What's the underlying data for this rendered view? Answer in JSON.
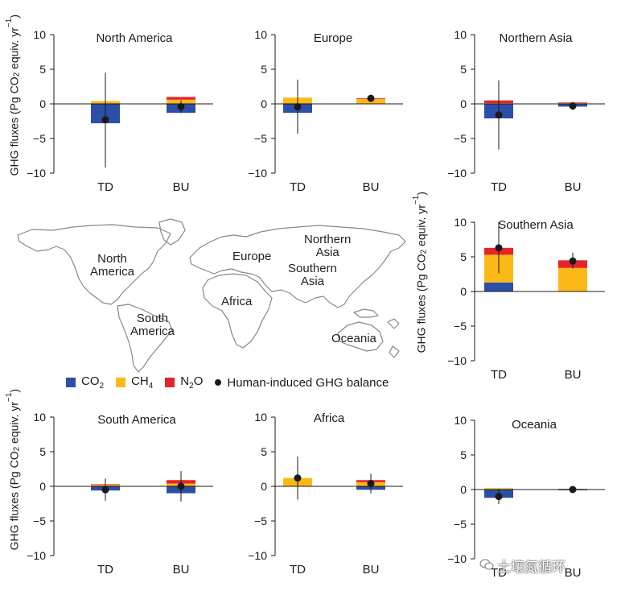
{
  "y_axis_title": "GHG fluxes (Pg CO",
  "y_axis_title_sub": "2",
  "y_axis_title_tail": " equiv. yr",
  "y_axis_title_sup": "−1",
  "y_axis_title_close": ")",
  "colors": {
    "co2": "#2b4fa6",
    "ch4": "#fbb918",
    "n2o": "#e5242a",
    "balance": "#1a1a1a",
    "map_outline": "#888888"
  },
  "legend": {
    "co2": "CO",
    "co2_sub": "2",
    "ch4": "CH",
    "ch4_sub": "4",
    "n2o": "N",
    "n2o_sub": "2",
    "n2o_tail": "O",
    "balance": "Human-induced GHG balance"
  },
  "map_labels": {
    "north_america": [
      "North",
      "America"
    ],
    "south_america": [
      "South",
      "America"
    ],
    "europe": "Europe",
    "africa": "Africa",
    "northern_asia": [
      "Northern",
      "Asia"
    ],
    "southern_asia": [
      "Southern",
      "Asia"
    ],
    "oceania": "Oceania"
  },
  "watermark": "土壤氮循环",
  "chart_data": [
    {
      "type": "bar",
      "title": "North America",
      "categories": [
        "TD",
        "BU"
      ],
      "ylim": [
        -10,
        10
      ],
      "yticks": [
        "10",
        "5",
        "0",
        "−5",
        "−10"
      ],
      "series": [
        {
          "name": "CO2",
          "values": [
            -2.8,
            -1.3
          ]
        },
        {
          "name": "CH4",
          "values": [
            0.4,
            0.6
          ]
        },
        {
          "name": "N2O",
          "values": [
            0.0,
            0.4
          ]
        }
      ],
      "balance": [
        -2.3,
        -0.4
      ],
      "error": [
        [
          -9.2,
          4.5
        ],
        [
          -1.3,
          0.5
        ]
      ]
    },
    {
      "type": "bar",
      "title": "Europe",
      "categories": [
        "TD",
        "BU"
      ],
      "ylim": [
        -10,
        10
      ],
      "yticks": [
        "10",
        "5",
        "0",
        "−5",
        "−10"
      ],
      "series": [
        {
          "name": "CO2",
          "values": [
            -1.3,
            0.0
          ]
        },
        {
          "name": "CH4",
          "values": [
            0.9,
            0.7
          ]
        },
        {
          "name": "N2O",
          "values": [
            0.0,
            0.1
          ]
        }
      ],
      "balance": [
        -0.4,
        0.8
      ],
      "error": [
        [
          -4.3,
          3.5
        ],
        [
          0.3,
          1.3
        ]
      ]
    },
    {
      "type": "bar",
      "title": "Northern Asia",
      "categories": [
        "TD",
        "BU"
      ],
      "ylim": [
        -10,
        10
      ],
      "yticks": [
        "10",
        "5",
        "0",
        "−5",
        "−10"
      ],
      "series": [
        {
          "name": "CO2",
          "values": [
            -2.1,
            -0.4
          ]
        },
        {
          "name": "CH4",
          "values": [
            0.1,
            0.1
          ]
        },
        {
          "name": "N2O",
          "values": [
            0.4,
            0.1
          ]
        }
      ],
      "balance": [
        -1.6,
        -0.3
      ],
      "error": [
        [
          -6.6,
          3.4
        ],
        [
          -0.9,
          0.3
        ]
      ]
    },
    {
      "type": "bar",
      "title": "Southern Asia",
      "categories": [
        "TD",
        "BU"
      ],
      "ylim": [
        -10,
        10
      ],
      "yticks": [
        "10",
        "5",
        "0",
        "−5",
        "−10"
      ],
      "series": [
        {
          "name": "CO2",
          "values": [
            1.3,
            0.0
          ]
        },
        {
          "name": "CH4",
          "values": [
            4.0,
            3.4
          ]
        },
        {
          "name": "N2O",
          "values": [
            1.0,
            1.1
          ]
        }
      ],
      "balance": [
        6.3,
        4.4
      ],
      "error": [
        [
          2.6,
          10.0
        ],
        [
          3.3,
          5.6
        ]
      ]
    },
    {
      "type": "bar",
      "title": "South America",
      "categories": [
        "TD",
        "BU"
      ],
      "ylim": [
        -10,
        10
      ],
      "yticks": [
        "10",
        "5",
        "0",
        "−5",
        "−10"
      ],
      "series": [
        {
          "name": "CO2",
          "values": [
            -0.6,
            -1.0
          ]
        },
        {
          "name": "CH4",
          "values": [
            0.2,
            0.4
          ]
        },
        {
          "name": "N2O",
          "values": [
            0.1,
            0.5
          ]
        }
      ],
      "balance": [
        -0.5,
        0.0
      ],
      "error": [
        [
          -2.1,
          1.1
        ],
        [
          -2.2,
          2.2
        ]
      ]
    },
    {
      "type": "bar",
      "title": "Africa",
      "categories": [
        "TD",
        "BU"
      ],
      "ylim": [
        -10,
        10
      ],
      "yticks": [
        "10",
        "5",
        "0",
        "−5",
        "−10"
      ],
      "series": [
        {
          "name": "CO2",
          "values": [
            0.0,
            -0.5
          ]
        },
        {
          "name": "CH4",
          "values": [
            1.2,
            0.6
          ]
        },
        {
          "name": "N2O",
          "values": [
            0.0,
            0.3
          ]
        }
      ],
      "balance": [
        1.2,
        0.4
      ],
      "error": [
        [
          -1.9,
          4.3
        ],
        [
          -1.0,
          1.8
        ]
      ]
    },
    {
      "type": "bar",
      "title": "Oceania",
      "categories": [
        "TD",
        "BU"
      ],
      "ylim": [
        -10,
        10
      ],
      "yticks": [
        "10",
        "5",
        "0",
        "−5",
        "−10"
      ],
      "series": [
        {
          "name": "CO2",
          "values": [
            -1.2,
            -0.1
          ]
        },
        {
          "name": "CH4",
          "values": [
            0.2,
            0.05
          ]
        },
        {
          "name": "N2O",
          "values": [
            0.0,
            0.05
          ]
        }
      ],
      "balance": [
        -1.0,
        0.0
      ],
      "error": [
        [
          -2.1,
          0.1
        ],
        [
          -0.2,
          0.2
        ]
      ]
    }
  ]
}
